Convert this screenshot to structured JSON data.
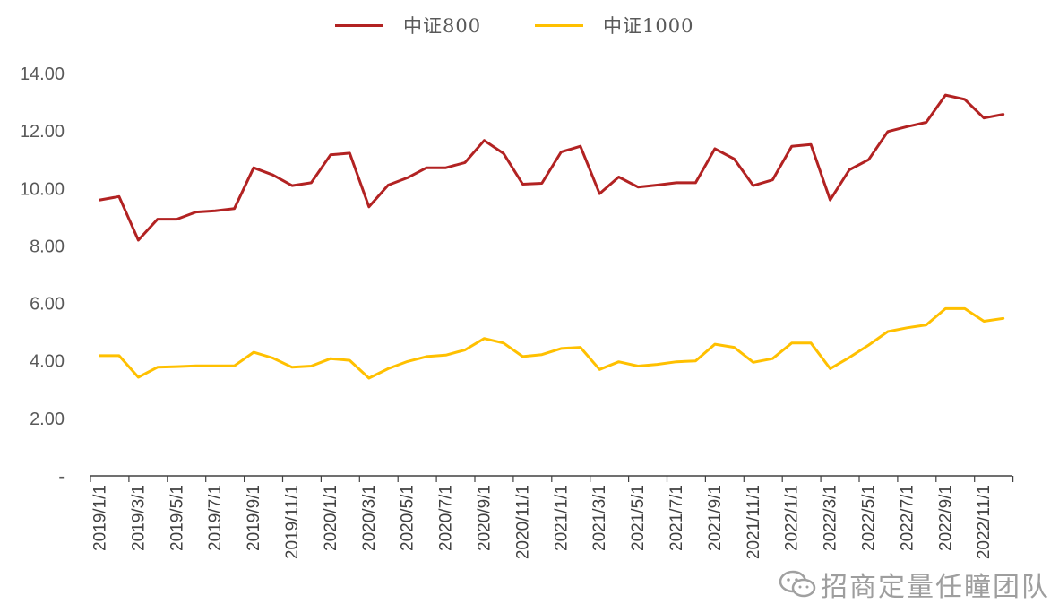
{
  "legend": {
    "items": [
      {
        "label": "中证800",
        "color": "#b22222"
      },
      {
        "label": "中证1000",
        "color": "#ffc000"
      }
    ]
  },
  "watermark": {
    "text": "招商定量任瞳团队",
    "icon": "wechat-icon"
  },
  "chart_data": {
    "type": "line",
    "title": "",
    "xlabel": "",
    "ylabel": "",
    "ylim": [
      0,
      14
    ],
    "yticks": [
      {
        "value": 0,
        "label": "-"
      },
      {
        "value": 2,
        "label": "2.00"
      },
      {
        "value": 4,
        "label": "4.00"
      },
      {
        "value": 6,
        "label": "6.00"
      },
      {
        "value": 8,
        "label": "8.00"
      },
      {
        "value": 10,
        "label": "10.00"
      },
      {
        "value": 12,
        "label": "12.00"
      },
      {
        "value": 14,
        "label": "14.00"
      }
    ],
    "grid": false,
    "legend_position": "top",
    "categories": [
      "2019/1/1",
      "2019/2/1",
      "2019/3/1",
      "2019/4/1",
      "2019/5/1",
      "2019/6/1",
      "2019/7/1",
      "2019/8/1",
      "2019/9/1",
      "2019/10/1",
      "2019/11/1",
      "2019/12/1",
      "2020/1/1",
      "2020/2/1",
      "2020/3/1",
      "2020/4/1",
      "2020/5/1",
      "2020/6/1",
      "2020/7/1",
      "2020/8/1",
      "2020/9/1",
      "2020/10/1",
      "2020/11/1",
      "2020/12/1",
      "2021/1/1",
      "2021/2/1",
      "2021/3/1",
      "2021/4/1",
      "2021/5/1",
      "2021/6/1",
      "2021/7/1",
      "2021/8/1",
      "2021/9/1",
      "2021/10/1",
      "2021/11/1",
      "2021/12/1",
      "2022/1/1",
      "2022/2/1",
      "2022/3/1",
      "2022/4/1",
      "2022/5/1",
      "2022/6/1",
      "2022/7/1",
      "2022/8/1",
      "2022/9/1",
      "2022/10/1",
      "2022/11/1",
      "2022/12/1"
    ],
    "xtick_labels": [
      "2019/1/1",
      "2019/3/1",
      "2019/5/1",
      "2019/7/1",
      "2019/9/1",
      "2019/11/1",
      "2020/1/1",
      "2020/3/1",
      "2020/5/1",
      "2020/7/1",
      "2020/9/1",
      "2020/11/1",
      "2021/1/1",
      "2021/3/1",
      "2021/5/1",
      "2021/7/1",
      "2021/9/1",
      "2021/11/1",
      "2022/1/1",
      "2022/3/1",
      "2022/5/1",
      "2022/7/1",
      "2022/9/1",
      "2022/11/1"
    ],
    "series": [
      {
        "name": "中证800",
        "color": "#b22222",
        "values": [
          9.6,
          9.72,
          8.2,
          8.93,
          8.93,
          9.18,
          9.22,
          9.3,
          10.72,
          10.47,
          10.1,
          10.2,
          11.17,
          11.23,
          9.36,
          10.12,
          10.37,
          10.72,
          10.72,
          10.9,
          11.67,
          11.22,
          10.15,
          10.18,
          11.27,
          11.47,
          9.82,
          10.4,
          10.05,
          10.12,
          10.2,
          10.2,
          11.38,
          11.03,
          10.1,
          10.3,
          11.47,
          11.53,
          9.6,
          10.65,
          11.0,
          11.98,
          12.15,
          12.3,
          13.25,
          13.1,
          12.45,
          12.58
        ]
      },
      {
        "name": "中证1000",
        "color": "#ffc000",
        "values": [
          4.18,
          4.18,
          3.43,
          3.78,
          3.8,
          3.83,
          3.83,
          3.83,
          4.3,
          4.1,
          3.78,
          3.82,
          4.08,
          4.02,
          3.4,
          3.73,
          3.98,
          4.15,
          4.2,
          4.38,
          4.78,
          4.62,
          4.15,
          4.22,
          4.43,
          4.47,
          3.7,
          3.97,
          3.82,
          3.88,
          3.97,
          4.0,
          4.58,
          4.47,
          3.95,
          4.08,
          4.62,
          4.62,
          3.73,
          4.12,
          4.55,
          5.02,
          5.15,
          5.25,
          5.82,
          5.82,
          5.38,
          5.48
        ]
      }
    ]
  }
}
